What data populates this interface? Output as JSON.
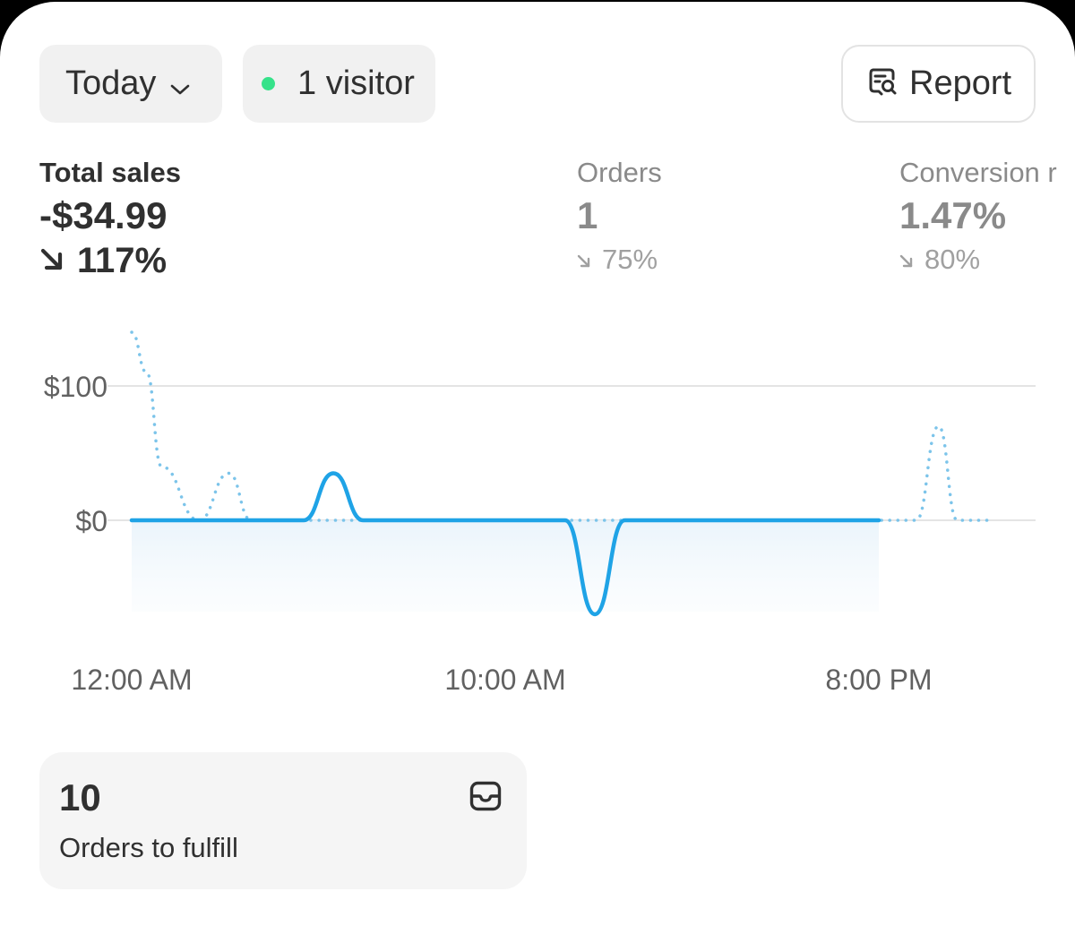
{
  "header": {
    "date_filter": "Today",
    "visitors": "1 visitor",
    "report_label": "Report",
    "live_dot_color": "#36e28a"
  },
  "metrics": [
    {
      "label": "Total sales",
      "value": "-$34.99",
      "change": "117%",
      "direction": "down"
    },
    {
      "label": "Orders",
      "value": "1",
      "change": "75%",
      "direction": "down"
    },
    {
      "label": "Conversion r",
      "value": "1.47%",
      "change": "80%",
      "direction": "down"
    }
  ],
  "chart_data": {
    "type": "line",
    "y_ticks": [
      "$100",
      "$0"
    ],
    "y_tick_values": [
      100,
      0
    ],
    "x_ticks": [
      "12:00 AM",
      "10:00 AM",
      "8:00 PM"
    ],
    "x_tick_hours": [
      0,
      10,
      20
    ],
    "series": [
      {
        "style": "solid",
        "color": "#1fa3e6",
        "x": [
          0,
          4.6,
          5.4,
          6.2,
          11.6,
          12.4,
          13.2,
          20
        ],
        "y": [
          0,
          0,
          35,
          0,
          0,
          -70,
          0,
          0
        ]
      },
      {
        "style": "dotted",
        "color": "#7cc4ea",
        "x": [
          0,
          0.4,
          0.8,
          1.8,
          2.6,
          3.2,
          3.8,
          5.4,
          8.2,
          12.4,
          20,
          21.0,
          21.6,
          22.1,
          23
        ],
        "y": [
          140,
          110,
          40,
          0,
          35,
          0,
          0,
          0,
          0,
          0,
          0,
          0,
          70,
          0,
          0
        ]
      }
    ]
  },
  "fulfill": {
    "count": "10",
    "label": "Orders to fulfill"
  }
}
